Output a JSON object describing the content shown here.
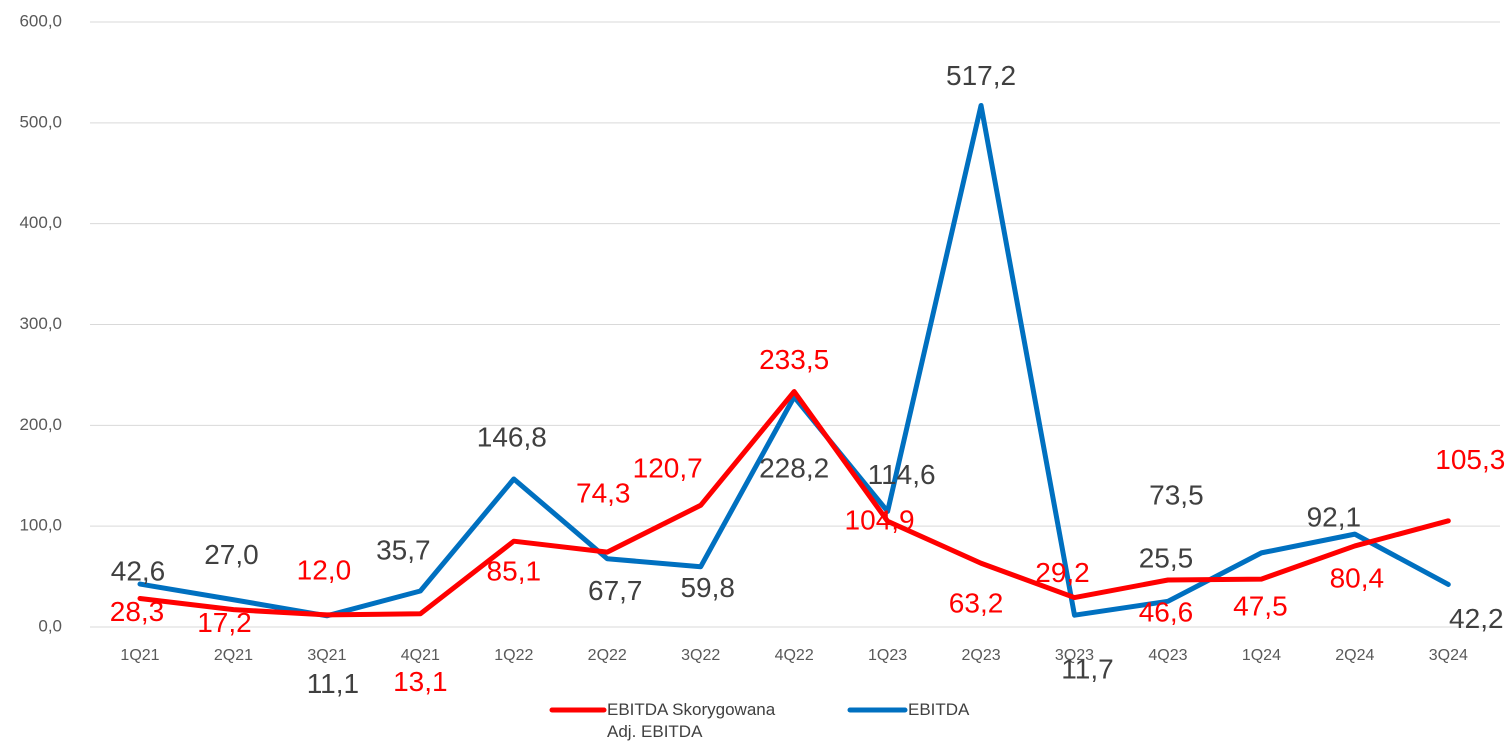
{
  "chart_data": {
    "type": "line",
    "categories": [
      "1Q21",
      "2Q21",
      "3Q21",
      "4Q21",
      "1Q22",
      "2Q22",
      "3Q22",
      "4Q22",
      "1Q23",
      "2Q23",
      "3Q23",
      "4Q23",
      "1Q24",
      "2Q24",
      "3Q24"
    ],
    "series": [
      {
        "name": "EBITDA Skorygowana\nAdj. EBITDA",
        "color": "#ff0000",
        "label_color": "#ff0000",
        "values": [
          28.3,
          17.2,
          12.0,
          13.1,
          85.1,
          74.3,
          120.7,
          233.5,
          104.9,
          63.2,
          29.2,
          46.6,
          47.5,
          80.4,
          105.3
        ],
        "value_labels": [
          "28,3",
          "17,2",
          "12,0",
          "13,1",
          "85,1",
          "74,3",
          "120,7",
          "233,5",
          "104,9",
          "63,2",
          "29,2",
          "46,6",
          "47,5",
          "80,4",
          "105,3"
        ]
      },
      {
        "name": "EBITDA",
        "color": "#0070c0",
        "label_color": "#404040",
        "values": [
          42.6,
          27.0,
          11.1,
          35.7,
          146.8,
          67.7,
          59.8,
          228.2,
          114.6,
          517.2,
          11.7,
          25.5,
          73.5,
          92.1,
          42.2
        ],
        "value_labels": [
          "42,6",
          "27,0",
          "11,1",
          "35,7",
          "146,8",
          "67,7",
          "59,8",
          "228,2",
          "114,6",
          "517,2",
          "11,7",
          "25,5",
          "73,5",
          "92,1",
          "42,2"
        ]
      }
    ],
    "ylim": [
      0,
      600
    ],
    "yticks": [
      {
        "value": 0,
        "label": "0,0"
      },
      {
        "value": 100,
        "label": "100,0"
      },
      {
        "value": 200,
        "label": "200,0"
      },
      {
        "value": 300,
        "label": "300,0"
      },
      {
        "value": 400,
        "label": "400,0"
      },
      {
        "value": 500,
        "label": "500,0"
      },
      {
        "value": 600,
        "label": "600,0"
      }
    ],
    "grid": true,
    "legend": "bottom"
  }
}
